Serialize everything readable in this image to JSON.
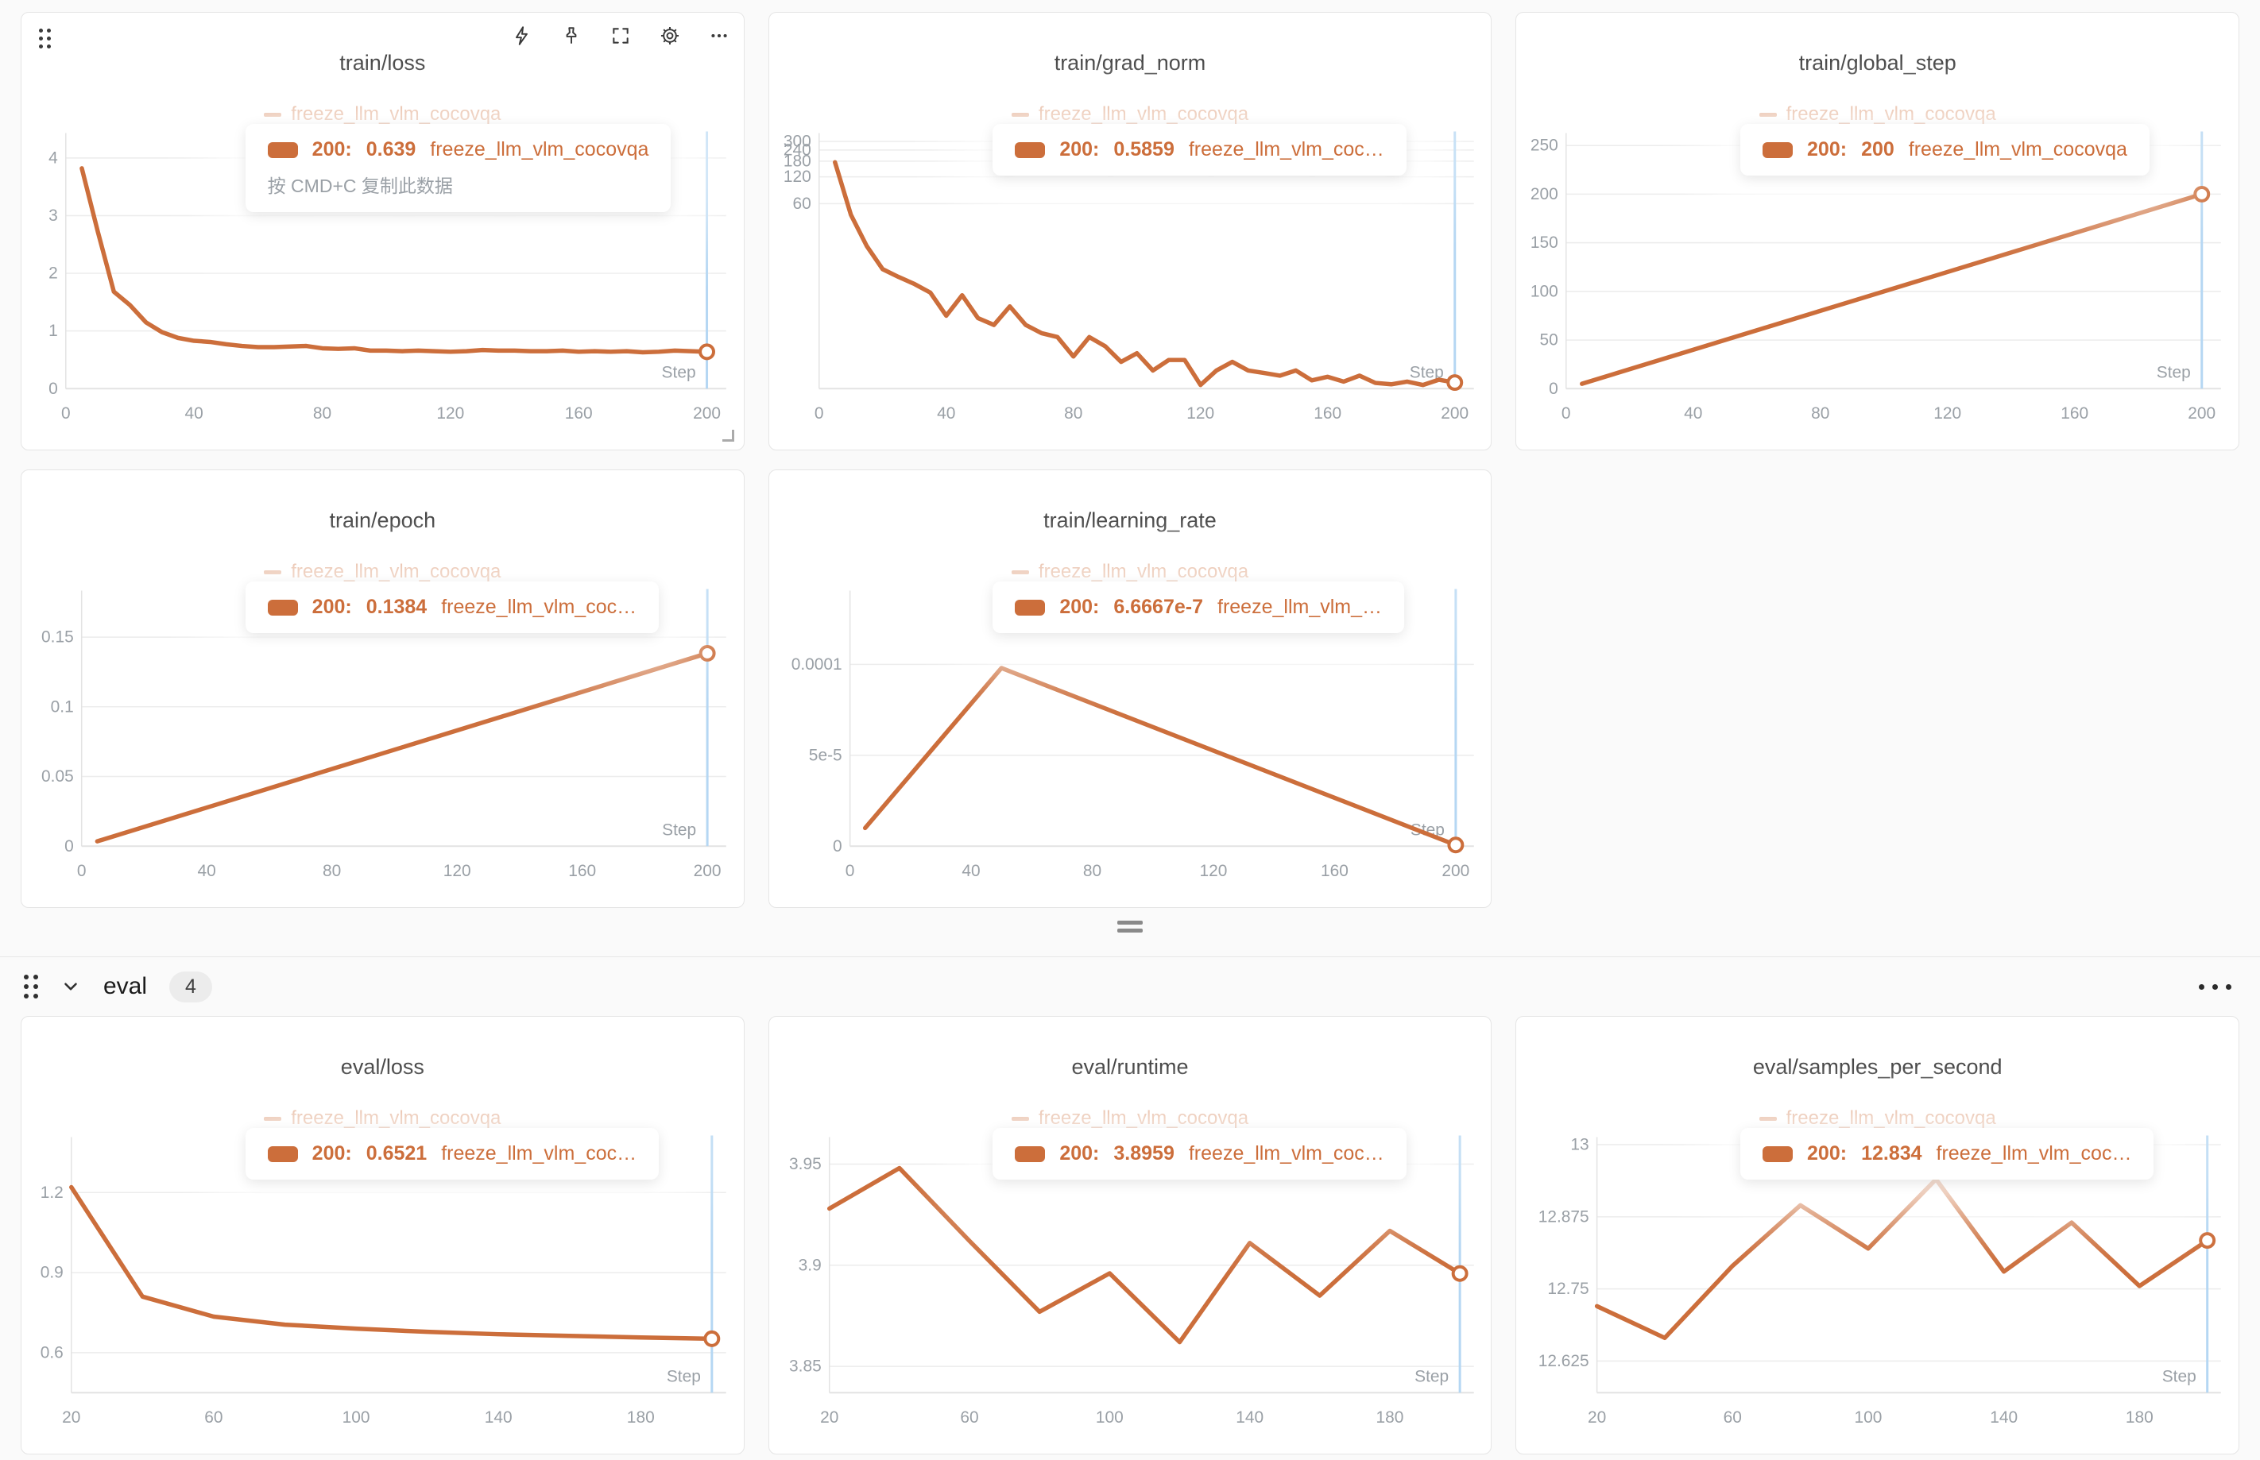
{
  "colors": {
    "accent": "#cc6e3b",
    "crosshair": "#b5d7f3",
    "grid": "#ececec",
    "axis": "#e3e3e3",
    "tick": "#9aa0a6",
    "title": "#2e2e2e",
    "page_bg": "#fafafa",
    "badge_bg": "#ececec"
  },
  "ui": {
    "run_name": "freeze_llm_vlm_cocovqa",
    "eval_section": {
      "title": "eval",
      "badge": "4"
    },
    "panel_toolbar_icons": [
      "zap-icon",
      "pin-icon",
      "fullscreen-icon",
      "gear-icon",
      "ellipsis-icon"
    ],
    "step_axis_label": "Step"
  },
  "chart_data": [
    {
      "id": "train_loss",
      "section": "train",
      "type": "line",
      "title": "train/loss",
      "legend": "freeze_llm_vlm_cocovqa",
      "tooltip": {
        "step": "200:",
        "value": "0.639",
        "run": "freeze_llm_vlm_cocovqa",
        "hint": "按 CMD+C 复制此数据"
      },
      "x": [
        5,
        10,
        15,
        20,
        25,
        30,
        35,
        40,
        45,
        50,
        55,
        60,
        65,
        70,
        75,
        80,
        85,
        90,
        95,
        100,
        105,
        110,
        115,
        120,
        125,
        130,
        135,
        140,
        145,
        150,
        155,
        160,
        165,
        170,
        175,
        180,
        185,
        190,
        195,
        200
      ],
      "y": [
        3.82,
        2.72,
        1.68,
        1.45,
        1.15,
        0.98,
        0.88,
        0.83,
        0.81,
        0.77,
        0.74,
        0.72,
        0.72,
        0.73,
        0.74,
        0.7,
        0.69,
        0.7,
        0.66,
        0.66,
        0.65,
        0.66,
        0.65,
        0.64,
        0.65,
        0.67,
        0.66,
        0.66,
        0.65,
        0.65,
        0.66,
        0.64,
        0.65,
        0.64,
        0.65,
        0.63,
        0.64,
        0.66,
        0.65,
        0.639
      ],
      "xlim": [
        0,
        206
      ],
      "ylim": [
        0,
        4.35
      ],
      "yscale": "linear",
      "xticks": [
        0,
        40,
        80,
        120,
        160,
        200
      ],
      "yticks": [
        {
          "v": 0,
          "label": "0"
        },
        {
          "v": 1,
          "label": "1"
        },
        {
          "v": 2,
          "label": "2"
        },
        {
          "v": 3,
          "label": "3"
        },
        {
          "v": 4,
          "label": "4"
        }
      ],
      "xlabel": "Step",
      "crosshair_x": 200,
      "show_toolbar": true,
      "show_resize": true
    },
    {
      "id": "train_grad_norm",
      "section": "train",
      "type": "line",
      "title": "train/grad_norm",
      "legend": "freeze_llm_vlm_cocovqa",
      "tooltip": {
        "step": "200:",
        "value": "0.5859",
        "run": "freeze_llm_vlm_coc…",
        "hint": ""
      },
      "x": [
        5,
        10,
        15,
        20,
        25,
        30,
        35,
        40,
        45,
        50,
        55,
        60,
        65,
        70,
        75,
        80,
        85,
        90,
        95,
        100,
        105,
        110,
        115,
        120,
        125,
        130,
        135,
        140,
        145,
        150,
        155,
        160,
        165,
        170,
        175,
        180,
        185,
        190,
        195,
        200
      ],
      "y": [
        175,
        45,
        20,
        11,
        9,
        7.5,
        6,
        3.3,
        5.6,
        3.1,
        2.6,
        4.2,
        2.6,
        2.1,
        1.9,
        1.15,
        1.9,
        1.5,
        1.0,
        1.25,
        0.8,
        1.05,
        1.05,
        0.55,
        0.8,
        1.0,
        0.8,
        0.75,
        0.7,
        0.8,
        0.62,
        0.68,
        0.6,
        0.7,
        0.58,
        0.56,
        0.6,
        0.55,
        0.63,
        0.5859
      ],
      "xlim": [
        0,
        206
      ],
      "ylim": [
        0.5,
        330
      ],
      "yscale": "log",
      "xticks": [
        0,
        40,
        80,
        120,
        160,
        200
      ],
      "yticks": [
        {
          "v": 60,
          "label": "60"
        },
        {
          "v": 120,
          "label": "120"
        },
        {
          "v": 180,
          "label": "180"
        },
        {
          "v": 240,
          "label": "240"
        },
        {
          "v": 300,
          "label": "300"
        }
      ],
      "xlabel": "Step",
      "crosshair_x": 200,
      "show_toolbar": false,
      "show_resize": false
    },
    {
      "id": "train_global_step",
      "section": "train",
      "type": "line",
      "title": "train/global_step",
      "legend": "freeze_llm_vlm_cocovqa",
      "tooltip": {
        "step": "200:",
        "value": "200",
        "run": "freeze_llm_vlm_cocovqa",
        "hint": ""
      },
      "x": [
        5,
        200
      ],
      "y": [
        5,
        200
      ],
      "xlim": [
        0,
        206
      ],
      "ylim": [
        0,
        258
      ],
      "yscale": "linear",
      "xticks": [
        0,
        40,
        80,
        120,
        160,
        200
      ],
      "yticks": [
        {
          "v": 0,
          "label": "0"
        },
        {
          "v": 50,
          "label": "50"
        },
        {
          "v": 100,
          "label": "100"
        },
        {
          "v": 150,
          "label": "150"
        },
        {
          "v": 200,
          "label": "200"
        },
        {
          "v": 250,
          "label": "250"
        }
      ],
      "xlabel": "Step",
      "crosshair_x": 200,
      "show_toolbar": false,
      "show_resize": false
    },
    {
      "id": "train_epoch",
      "section": "train",
      "type": "line",
      "title": "train/epoch",
      "legend": "freeze_llm_vlm_cocovqa",
      "tooltip": {
        "step": "200:",
        "value": "0.1384",
        "run": "freeze_llm_vlm_coc…",
        "hint": ""
      },
      "x": [
        5,
        200
      ],
      "y": [
        0.0035,
        0.1384
      ],
      "xlim": [
        0,
        206
      ],
      "ylim": [
        0,
        0.18
      ],
      "yscale": "linear",
      "xticks": [
        0,
        40,
        80,
        120,
        160,
        200
      ],
      "yticks": [
        {
          "v": 0,
          "label": "0"
        },
        {
          "v": 0.05,
          "label": "0.05"
        },
        {
          "v": 0.1,
          "label": "0.1"
        },
        {
          "v": 0.15,
          "label": "0.15"
        }
      ],
      "xlabel": "Step",
      "crosshair_x": 200,
      "show_toolbar": false,
      "show_resize": false
    },
    {
      "id": "train_learning_rate",
      "section": "train",
      "type": "line",
      "title": "train/learning_rate",
      "legend": "freeze_llm_vlm_cocovqa",
      "tooltip": {
        "step": "200:",
        "value": "6.6667e-7",
        "run": "freeze_llm_vlm_…",
        "hint": ""
      },
      "x": [
        5,
        50,
        200
      ],
      "y": [
        1e-05,
        9.8e-05,
        6.6667e-07
      ],
      "xlim": [
        0,
        206
      ],
      "ylim": [
        0,
        0.000138
      ],
      "yscale": "linear",
      "xticks": [
        0,
        40,
        80,
        120,
        160,
        200
      ],
      "yticks": [
        {
          "v": 0,
          "label": "0"
        },
        {
          "v": 5e-05,
          "label": "5e-5"
        },
        {
          "v": 0.0001,
          "label": "0.0001"
        }
      ],
      "xlabel": "Step",
      "crosshair_x": 200,
      "show_toolbar": false,
      "show_resize": false
    },
    {
      "id": "eval_loss",
      "section": "eval",
      "type": "line",
      "title": "eval/loss",
      "legend": "freeze_llm_vlm_cocovqa",
      "tooltip": {
        "step": "200:",
        "value": "0.6521",
        "run": "freeze_llm_vlm_coc…",
        "hint": ""
      },
      "x": [
        20,
        40,
        60,
        80,
        100,
        120,
        140,
        160,
        180,
        200
      ],
      "y": [
        1.22,
        0.81,
        0.735,
        0.705,
        0.69,
        0.678,
        0.669,
        0.663,
        0.657,
        0.6521
      ],
      "xlim": [
        20,
        204
      ],
      "ylim": [
        0.45,
        1.39
      ],
      "yscale": "linear",
      "xticks": [
        20,
        60,
        100,
        140,
        180
      ],
      "yticks": [
        {
          "v": 0.6,
          "label": "0.6"
        },
        {
          "v": 0.9,
          "label": "0.9"
        },
        {
          "v": 1.2,
          "label": "1.2"
        }
      ],
      "xlabel": "Step",
      "crosshair_x": 200,
      "show_toolbar": false,
      "show_resize": false
    },
    {
      "id": "eval_runtime",
      "section": "eval",
      "type": "line",
      "title": "eval/runtime",
      "legend": "freeze_llm_vlm_cocovqa",
      "tooltip": {
        "step": "200:",
        "value": "3.8959",
        "run": "freeze_llm_vlm_coc…",
        "hint": ""
      },
      "x": [
        20,
        40,
        60,
        80,
        100,
        120,
        140,
        160,
        180,
        200
      ],
      "y": [
        3.928,
        3.948,
        3.912,
        3.877,
        3.896,
        3.862,
        3.911,
        3.885,
        3.917,
        3.8959
      ],
      "xlim": [
        20,
        204
      ],
      "ylim": [
        3.837,
        3.961
      ],
      "yscale": "linear",
      "xticks": [
        20,
        60,
        100,
        140,
        180
      ],
      "yticks": [
        {
          "v": 3.85,
          "label": "3.85"
        },
        {
          "v": 3.9,
          "label": "3.9"
        },
        {
          "v": 3.95,
          "label": "3.95"
        }
      ],
      "xlabel": "Step",
      "crosshair_x": 200,
      "show_toolbar": false,
      "show_resize": false
    },
    {
      "id": "eval_samples_per_second",
      "section": "eval",
      "type": "line",
      "title": "eval/samples_per_second",
      "legend": "freeze_llm_vlm_cocovqa",
      "tooltip": {
        "step": "200:",
        "value": "12.834",
        "run": "freeze_llm_vlm_coc…",
        "hint": ""
      },
      "x": [
        20,
        40,
        60,
        80,
        100,
        120,
        140,
        160,
        180,
        200
      ],
      "y": [
        12.72,
        12.665,
        12.79,
        12.895,
        12.82,
        12.94,
        12.78,
        12.865,
        12.755,
        12.834
      ],
      "xlim": [
        20,
        204
      ],
      "ylim": [
        12.57,
        13.005
      ],
      "yscale": "linear",
      "xticks": [
        20,
        60,
        100,
        140,
        180
      ],
      "yticks": [
        {
          "v": 12.625,
          "label": "12.625"
        },
        {
          "v": 12.75,
          "label": "12.75"
        },
        {
          "v": 12.875,
          "label": "12.875"
        },
        {
          "v": 13,
          "label": "13"
        }
      ],
      "xlabel": "Step",
      "crosshair_x": 200,
      "show_toolbar": false,
      "show_resize": false
    }
  ]
}
